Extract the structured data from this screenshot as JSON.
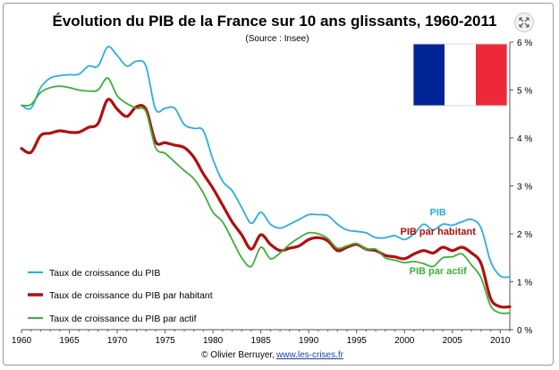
{
  "chart_data": {
    "type": "line",
    "title": "Évolution du PIB de la France sur 10 ans glissants, 1960-2011",
    "subtitle": "(Source : Insee)",
    "credit": "© Olivier Berruyer,",
    "credit_link": "www.les-crises.fr",
    "xlim": [
      1960,
      2011
    ],
    "ylim": [
      0,
      6
    ],
    "x_ticks": [
      "1960",
      "1965",
      "1970",
      "1975",
      "1980",
      "1985",
      "1990",
      "1995",
      "2000",
      "2005",
      "2010"
    ],
    "y_ticks": [
      "0 %",
      "1 %",
      "2 %",
      "3 %",
      "4 %",
      "5 %",
      "6 %"
    ],
    "grid": false,
    "legend_position": "bottom-left",
    "series": [
      {
        "name": "Taux de croissance du PIB",
        "label": "PIB",
        "color": "#2aaee2",
        "x": [
          1960,
          1961,
          1962,
          1963,
          1964,
          1965,
          1966,
          1967,
          1968,
          1969,
          1970,
          1971,
          1972,
          1973,
          1974,
          1975,
          1976,
          1977,
          1978,
          1979,
          1980,
          1981,
          1982,
          1983,
          1984,
          1985,
          1986,
          1987,
          1988,
          1989,
          1990,
          1991,
          1992,
          1993,
          1994,
          1995,
          1996,
          1997,
          1998,
          1999,
          2000,
          2001,
          2002,
          2003,
          2004,
          2005,
          2006,
          2007,
          2008,
          2009,
          2010,
          2011
        ],
        "y": [
          4.68,
          4.62,
          5.05,
          5.25,
          5.3,
          5.32,
          5.33,
          5.5,
          5.5,
          5.9,
          5.72,
          5.5,
          5.6,
          5.5,
          4.6,
          4.62,
          4.62,
          4.28,
          4.2,
          4.15,
          3.55,
          3.1,
          2.9,
          2.55,
          2.22,
          2.45,
          2.2,
          2.12,
          2.2,
          2.3,
          2.4,
          2.4,
          2.38,
          2.2,
          2.08,
          2.05,
          2.02,
          1.92,
          1.92,
          1.96,
          1.88,
          2.0,
          2.2,
          2.08,
          2.2,
          2.18,
          2.25,
          2.3,
          2.12,
          1.42,
          1.12,
          1.1
        ]
      },
      {
        "name": "Taux de croissance du PIB par habitant",
        "label": "PIB par habitant",
        "color": "#b00f0f",
        "x": [
          1960,
          1961,
          1962,
          1963,
          1964,
          1965,
          1966,
          1967,
          1968,
          1969,
          1970,
          1971,
          1972,
          1973,
          1974,
          1975,
          1976,
          1977,
          1978,
          1979,
          1980,
          1981,
          1982,
          1983,
          1984,
          1985,
          1986,
          1987,
          1988,
          1989,
          1990,
          1991,
          1992,
          1993,
          1994,
          1995,
          1996,
          1997,
          1998,
          1999,
          2000,
          2001,
          2002,
          2003,
          2004,
          2005,
          2006,
          2007,
          2008,
          2009,
          2010,
          2011
        ],
        "y": [
          3.78,
          3.7,
          4.05,
          4.1,
          4.15,
          4.12,
          4.12,
          4.22,
          4.3,
          4.8,
          4.6,
          4.45,
          4.65,
          4.6,
          3.92,
          3.9,
          3.85,
          3.8,
          3.6,
          3.25,
          2.95,
          2.6,
          2.25,
          1.98,
          1.68,
          1.98,
          1.78,
          1.65,
          1.7,
          1.75,
          1.88,
          1.92,
          1.85,
          1.65,
          1.72,
          1.78,
          1.68,
          1.65,
          1.55,
          1.52,
          1.48,
          1.58,
          1.65,
          1.6,
          1.72,
          1.65,
          1.72,
          1.6,
          1.38,
          0.65,
          0.48,
          0.48
        ]
      },
      {
        "name": "Taux de croissance du PIB par actif",
        "label": "PIB par actif",
        "color": "#3fae3a",
        "x": [
          1960,
          1961,
          1962,
          1963,
          1964,
          1965,
          1966,
          1967,
          1968,
          1969,
          1970,
          1971,
          1972,
          1973,
          1974,
          1975,
          1976,
          1977,
          1978,
          1979,
          1980,
          1981,
          1982,
          1983,
          1984,
          1985,
          1986,
          1987,
          1988,
          1989,
          1990,
          1991,
          1992,
          1993,
          1994,
          1995,
          1996,
          1997,
          1998,
          1999,
          2000,
          2001,
          2002,
          2003,
          2004,
          2005,
          2006,
          2007,
          2008,
          2009,
          2010,
          2011
        ],
        "y": [
          4.68,
          4.7,
          4.95,
          5.05,
          5.08,
          5.05,
          5.0,
          4.98,
          5.0,
          5.25,
          4.88,
          4.72,
          4.62,
          4.55,
          3.8,
          3.68,
          3.5,
          3.32,
          3.15,
          2.85,
          2.45,
          2.25,
          1.88,
          1.5,
          1.32,
          1.72,
          1.48,
          1.6,
          1.78,
          1.92,
          2.02,
          2.0,
          1.9,
          1.7,
          1.75,
          1.8,
          1.68,
          1.68,
          1.5,
          1.45,
          1.4,
          1.42,
          1.38,
          1.32,
          1.5,
          1.52,
          1.58,
          1.35,
          1.08,
          0.5,
          0.35,
          0.35
        ]
      }
    ]
  },
  "ui": {
    "expand_icon": "expand-arrows-icon",
    "flag": "french-flag",
    "flag_colors": [
      "#002395",
      "#ffffff",
      "#ed2939"
    ]
  }
}
